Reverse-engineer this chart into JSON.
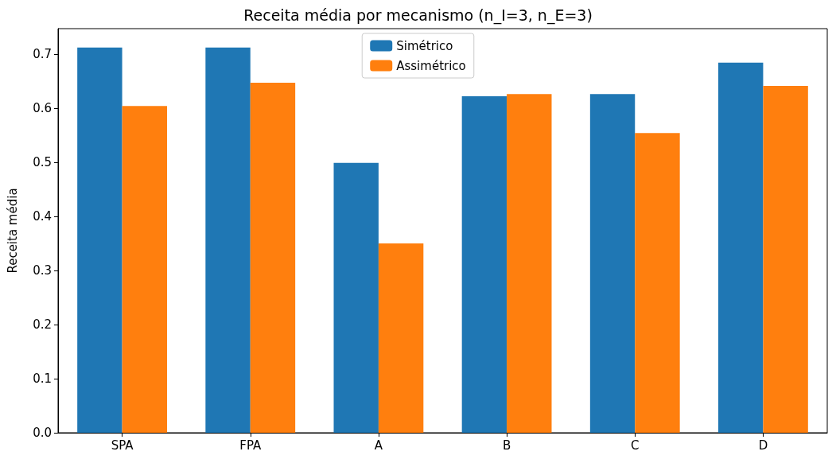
{
  "chart_data": {
    "type": "bar",
    "title": "Receita média por mecanismo (n_I=3, n_E=3)",
    "ylabel": "Receita média",
    "categories": [
      "SPA",
      "FPA",
      "A",
      "B",
      "C",
      "D"
    ],
    "series": [
      {
        "name": "Simétrico",
        "color": "#1f77b4",
        "values": [
          0.712,
          0.712,
          0.499,
          0.622,
          0.626,
          0.684
        ]
      },
      {
        "name": "Assimétrico",
        "color": "#ff7f0e",
        "values": [
          0.604,
          0.647,
          0.35,
          0.626,
          0.554,
          0.641
        ]
      }
    ],
    "ylim": [
      0,
      0.747
    ],
    "yticks": [
      {
        "value": 0,
        "label": "0.0"
      },
      0.1,
      0.2,
      0.3,
      0.4,
      0.5,
      0.6,
      0.7
    ],
    "grid": false,
    "legend": "top"
  }
}
